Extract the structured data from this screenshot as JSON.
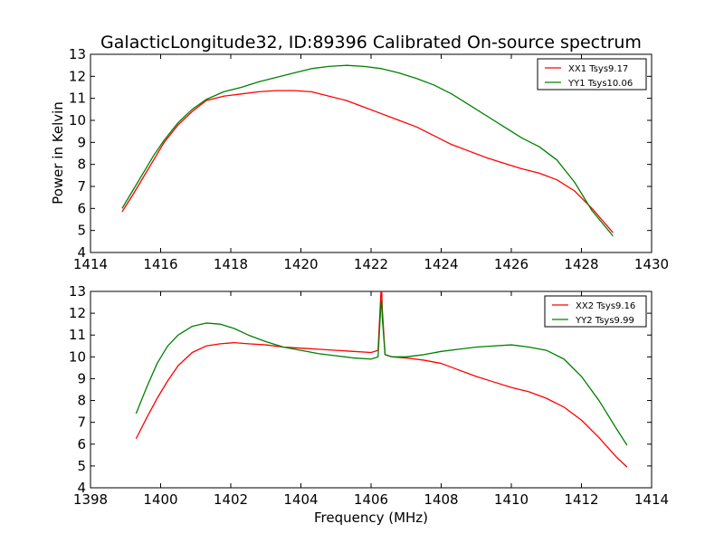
{
  "chart_data": [
    {
      "type": "line",
      "title": "GalacticLongitude32, ID:89396 Calibrated On-source spectrum",
      "xlabel": "",
      "ylabel": "Power in Kelvin",
      "xlim": [
        1414,
        1430
      ],
      "ylim": [
        4,
        13
      ],
      "xticks": [
        "1414",
        "1416",
        "1418",
        "1420",
        "1422",
        "1424",
        "1426",
        "1428",
        "1430"
      ],
      "yticks": [
        "4",
        "5",
        "6",
        "7",
        "8",
        "9",
        "10",
        "11",
        "12",
        "13"
      ],
      "legend_position": "top-right",
      "series": [
        {
          "name": "XX1 Tsys9.17",
          "color": "#ff0000",
          "x": [
            1414.9,
            1415.2,
            1415.5,
            1415.8,
            1416.1,
            1416.5,
            1416.9,
            1417.3,
            1417.8,
            1418.3,
            1418.8,
            1419.3,
            1419.8,
            1420.3,
            1420.8,
            1421.3,
            1421.8,
            1422.3,
            1422.8,
            1423.3,
            1423.8,
            1424.3,
            1424.8,
            1425.3,
            1425.8,
            1426.3,
            1426.8,
            1427.3,
            1427.8,
            1428.3,
            1428.9
          ],
          "y": [
            5.85,
            6.6,
            7.4,
            8.2,
            9.0,
            9.8,
            10.4,
            10.9,
            11.1,
            11.2,
            11.3,
            11.35,
            11.35,
            11.3,
            11.1,
            10.9,
            10.6,
            10.3,
            10.0,
            9.7,
            9.3,
            8.9,
            8.6,
            8.3,
            8.05,
            7.8,
            7.6,
            7.3,
            6.8,
            6.0,
            4.9
          ]
        },
        {
          "name": "YY1 Tsys10.06",
          "color": "#008000",
          "x": [
            1414.9,
            1415.2,
            1415.5,
            1415.8,
            1416.1,
            1416.5,
            1416.9,
            1417.3,
            1417.8,
            1418.3,
            1418.8,
            1419.3,
            1419.8,
            1420.3,
            1420.8,
            1421.3,
            1421.8,
            1422.3,
            1422.8,
            1423.3,
            1423.8,
            1424.3,
            1424.8,
            1425.3,
            1425.8,
            1426.3,
            1426.8,
            1427.3,
            1427.8,
            1428.3,
            1428.9
          ],
          "y": [
            6.0,
            6.8,
            7.6,
            8.4,
            9.1,
            9.9,
            10.5,
            10.95,
            11.3,
            11.5,
            11.75,
            11.95,
            12.15,
            12.35,
            12.45,
            12.5,
            12.45,
            12.35,
            12.15,
            11.9,
            11.6,
            11.2,
            10.7,
            10.2,
            9.7,
            9.2,
            8.8,
            8.2,
            7.2,
            5.9,
            4.75
          ]
        }
      ]
    },
    {
      "type": "line",
      "title": "",
      "xlabel": "Frequency (MHz)",
      "ylabel": "",
      "xlim": [
        1398,
        1414
      ],
      "ylim": [
        4,
        13
      ],
      "xticks": [
        "1398",
        "1400",
        "1402",
        "1404",
        "1406",
        "1408",
        "1410",
        "1412",
        "1414"
      ],
      "yticks": [
        "4",
        "5",
        "6",
        "7",
        "8",
        "9",
        "10",
        "11",
        "12",
        "13"
      ],
      "legend_position": "top-right",
      "series": [
        {
          "name": "XX2 Tsys9.16",
          "color": "#ff0000",
          "x": [
            1399.3,
            1399.6,
            1399.9,
            1400.2,
            1400.5,
            1400.9,
            1401.3,
            1401.7,
            1402.1,
            1402.5,
            1403.0,
            1403.5,
            1404.0,
            1404.5,
            1405.0,
            1405.5,
            1406.0,
            1406.2,
            1406.28,
            1406.3,
            1406.32,
            1406.4,
            1406.6,
            1407.0,
            1407.5,
            1408.0,
            1408.5,
            1409.0,
            1409.5,
            1410.0,
            1410.5,
            1411.0,
            1411.5,
            1412.0,
            1412.5,
            1413.0,
            1413.3
          ],
          "y": [
            6.25,
            7.2,
            8.1,
            8.9,
            9.6,
            10.2,
            10.5,
            10.6,
            10.65,
            10.6,
            10.55,
            10.45,
            10.4,
            10.35,
            10.3,
            10.25,
            10.2,
            10.3,
            12.9,
            13.2,
            12.2,
            10.1,
            10.0,
            9.95,
            9.85,
            9.7,
            9.4,
            9.1,
            8.85,
            8.6,
            8.4,
            8.1,
            7.7,
            7.1,
            6.3,
            5.4,
            4.95
          ]
        },
        {
          "name": "YY2 Tsys9.99",
          "color": "#008000",
          "x": [
            1399.3,
            1399.6,
            1399.9,
            1400.2,
            1400.5,
            1400.9,
            1401.3,
            1401.7,
            1402.1,
            1402.5,
            1403.0,
            1403.5,
            1404.0,
            1404.5,
            1405.0,
            1405.5,
            1406.0,
            1406.2,
            1406.28,
            1406.3,
            1406.32,
            1406.4,
            1406.6,
            1407.0,
            1407.5,
            1408.0,
            1408.5,
            1409.0,
            1409.5,
            1410.0,
            1410.5,
            1411.0,
            1411.5,
            1412.0,
            1412.5,
            1413.0,
            1413.3
          ],
          "y": [
            7.4,
            8.6,
            9.7,
            10.5,
            11.0,
            11.4,
            11.55,
            11.5,
            11.3,
            11.0,
            10.7,
            10.45,
            10.3,
            10.15,
            10.05,
            9.95,
            9.9,
            10.0,
            12.4,
            12.6,
            11.8,
            10.1,
            10.0,
            10.0,
            10.1,
            10.25,
            10.35,
            10.45,
            10.5,
            10.55,
            10.45,
            10.3,
            9.9,
            9.1,
            8.0,
            6.7,
            5.95
          ]
        }
      ]
    }
  ]
}
